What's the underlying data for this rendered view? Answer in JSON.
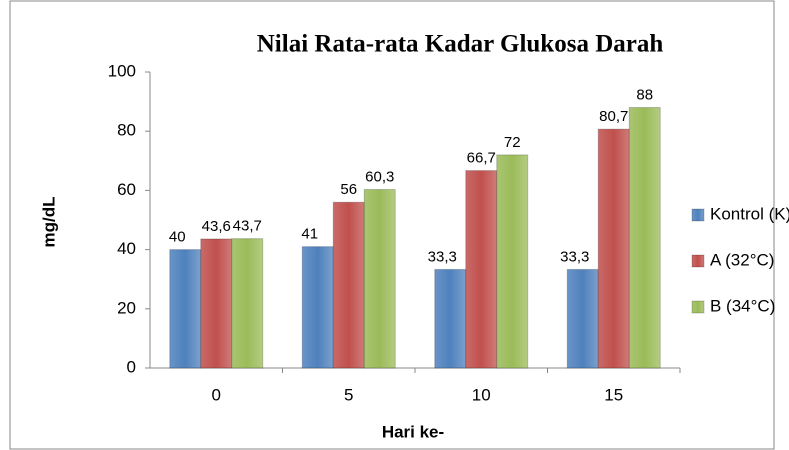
{
  "chart_data": {
    "type": "bar",
    "title": "Nilai Rata-rata Kadar Glukosa Darah",
    "x_label": "Hari ke-",
    "y_label": "mg/dL",
    "categories": [
      "0",
      "5",
      "10",
      "15"
    ],
    "series": [
      {
        "name": "Kontrol (K)",
        "color": "#4f81bd",
        "values": [
          40,
          41,
          33.3,
          33.3
        ],
        "value_labels": [
          "40",
          "41",
          "33,3",
          "33,3"
        ]
      },
      {
        "name": "A (32°C)",
        "color": "#c0504d",
        "values": [
          43.6,
          56,
          66.7,
          80.7
        ],
        "value_labels": [
          "43,6",
          "56",
          "66,7",
          "80,7"
        ]
      },
      {
        "name": "B (34°C)",
        "color": "#9bbb59",
        "values": [
          43.7,
          60.3,
          72,
          88
        ],
        "value_labels": [
          "43,7",
          "60,3",
          "72",
          "88"
        ]
      }
    ],
    "ylim": [
      0,
      100
    ],
    "yticks": [
      0,
      20,
      40,
      60,
      80,
      100
    ],
    "legend": "right"
  }
}
